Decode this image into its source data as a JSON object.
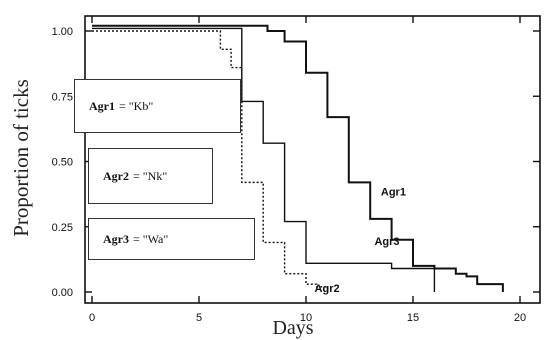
{
  "chart_data": {
    "type": "line",
    "step": true,
    "xlabel": "Days",
    "ylabel": "Proportion of ticks",
    "xlim": [
      0,
      20
    ],
    "ylim": [
      0,
      1
    ],
    "x_ticks": [
      "0",
      "5",
      "10",
      "15",
      "20"
    ],
    "y_ticks": [
      "0.00",
      "0.25",
      "0.50",
      "0.75",
      "1.00"
    ],
    "legend": [
      {
        "name": "Agr1",
        "text": "= \"Kb\""
      },
      {
        "name": "Agr2",
        "text": "= \"Nk\""
      },
      {
        "name": "Agr3",
        "text": "= \"Wa\""
      }
    ],
    "series": [
      {
        "name": "Agr1",
        "style": "solid",
        "points": [
          [
            0,
            1.02
          ],
          [
            8.2,
            1.02
          ],
          [
            8.2,
            1.0
          ],
          [
            9.0,
            1.0
          ],
          [
            9.0,
            0.96
          ],
          [
            10.0,
            0.84
          ],
          [
            11.0,
            0.67
          ],
          [
            12.0,
            0.42
          ],
          [
            13.0,
            0.38
          ],
          [
            13.0,
            0.28
          ],
          [
            14.0,
            0.2
          ],
          [
            15.0,
            0.1
          ],
          [
            16.0,
            0.09
          ],
          [
            17.0,
            0.07
          ],
          [
            17.5,
            0.06
          ],
          [
            18.0,
            0.03
          ],
          [
            19.2,
            0.0
          ]
        ]
      },
      {
        "name": "Agr2",
        "style": "dotted",
        "points": [
          [
            0,
            1.0
          ],
          [
            6.0,
            1.0
          ],
          [
            6.0,
            0.93
          ],
          [
            6.5,
            0.93
          ],
          [
            6.5,
            0.86
          ],
          [
            7.0,
            0.48
          ],
          [
            7.0,
            0.42
          ],
          [
            8.0,
            0.21
          ],
          [
            8.0,
            0.19
          ],
          [
            9.0,
            0.19
          ],
          [
            9.0,
            0.07
          ],
          [
            10.0,
            0.07
          ],
          [
            10.0,
            0.03
          ],
          [
            10.5,
            0.02
          ],
          [
            11.0,
            0.0
          ]
        ]
      },
      {
        "name": "Agr3",
        "style": "solid",
        "points": [
          [
            0,
            1.01
          ],
          [
            7.0,
            1.01
          ],
          [
            7.0,
            0.73
          ],
          [
            8.0,
            0.73
          ],
          [
            8.0,
            0.57
          ],
          [
            9.0,
            0.57
          ],
          [
            9.0,
            0.27
          ],
          [
            10.0,
            0.27
          ],
          [
            10.0,
            0.11
          ],
          [
            14.0,
            0.11
          ],
          [
            14.0,
            0.09
          ],
          [
            16.0,
            0.09
          ],
          [
            16.0,
            0.0
          ]
        ]
      }
    ],
    "series_labels": [
      {
        "name": "Agr1",
        "x": 13.5,
        "y": 0.37
      },
      {
        "name": "Agr3",
        "x": 13.2,
        "y": 0.18
      },
      {
        "name": "Agr2",
        "x": 10.4,
        "y": 0.0
      }
    ]
  }
}
